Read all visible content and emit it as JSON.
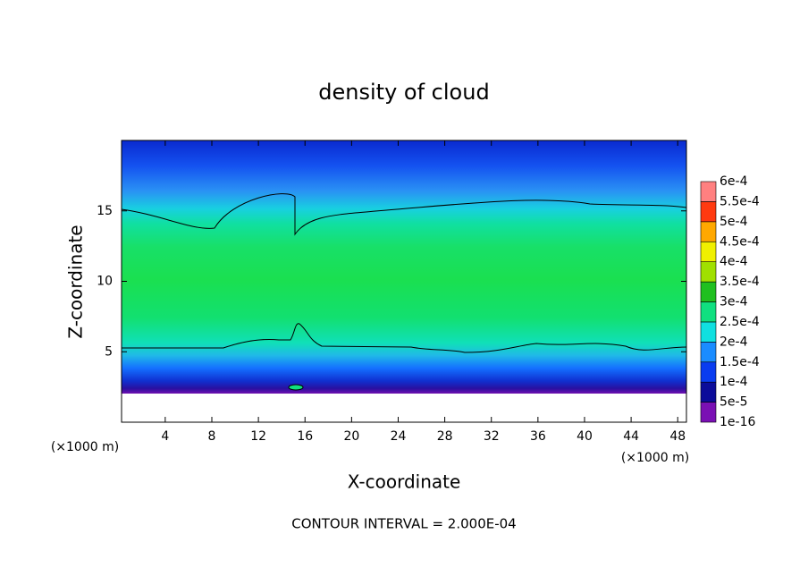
{
  "chart_data": {
    "type": "contour",
    "title": "density of cloud",
    "x_label": "X-coordinate",
    "y_label": "Z-coordinate",
    "y_unit_label": "(×1000 m)",
    "x_unit_label": "(×1000 m)",
    "annotation": "CONTOUR INTERVAL = 2.000E-04",
    "xlim": [
      0.25,
      48.75
    ],
    "ylim": [
      0,
      20
    ],
    "xticks": [
      4,
      8,
      12,
      16,
      20,
      24,
      28,
      32,
      36,
      40,
      44,
      48
    ],
    "yticks": [
      5,
      10,
      15
    ],
    "colorbar": {
      "levels": [
        {
          "value": 1e-16,
          "label": "1e-16"
        },
        {
          "value": 5e-05,
          "label": "5e-5"
        },
        {
          "value": 0.0001,
          "label": "1e-4"
        },
        {
          "value": 0.00015,
          "label": "1.5e-4"
        },
        {
          "value": 0.0002,
          "label": "2e-4"
        },
        {
          "value": 0.00025,
          "label": "2.5e-4"
        },
        {
          "value": 0.0003,
          "label": "3e-4"
        },
        {
          "value": 0.00035,
          "label": "3.5e-4"
        },
        {
          "value": 0.0004,
          "label": "4e-4"
        },
        {
          "value": 0.00045,
          "label": "4.5e-4"
        },
        {
          "value": 0.0005,
          "label": "5e-4"
        },
        {
          "value": 0.00055,
          "label": "5.5e-4"
        },
        {
          "value": 0.0006,
          "label": "6e-4"
        }
      ],
      "colors": [
        "#7a10b4",
        "#0c0c9a",
        "#0a3cf0",
        "#1a8cff",
        "#10e0e0",
        "#10e080",
        "#20c020",
        "#a0e000",
        "#f0f000",
        "#ffa800",
        "#ff3a10",
        "#ff8080"
      ]
    }
  }
}
